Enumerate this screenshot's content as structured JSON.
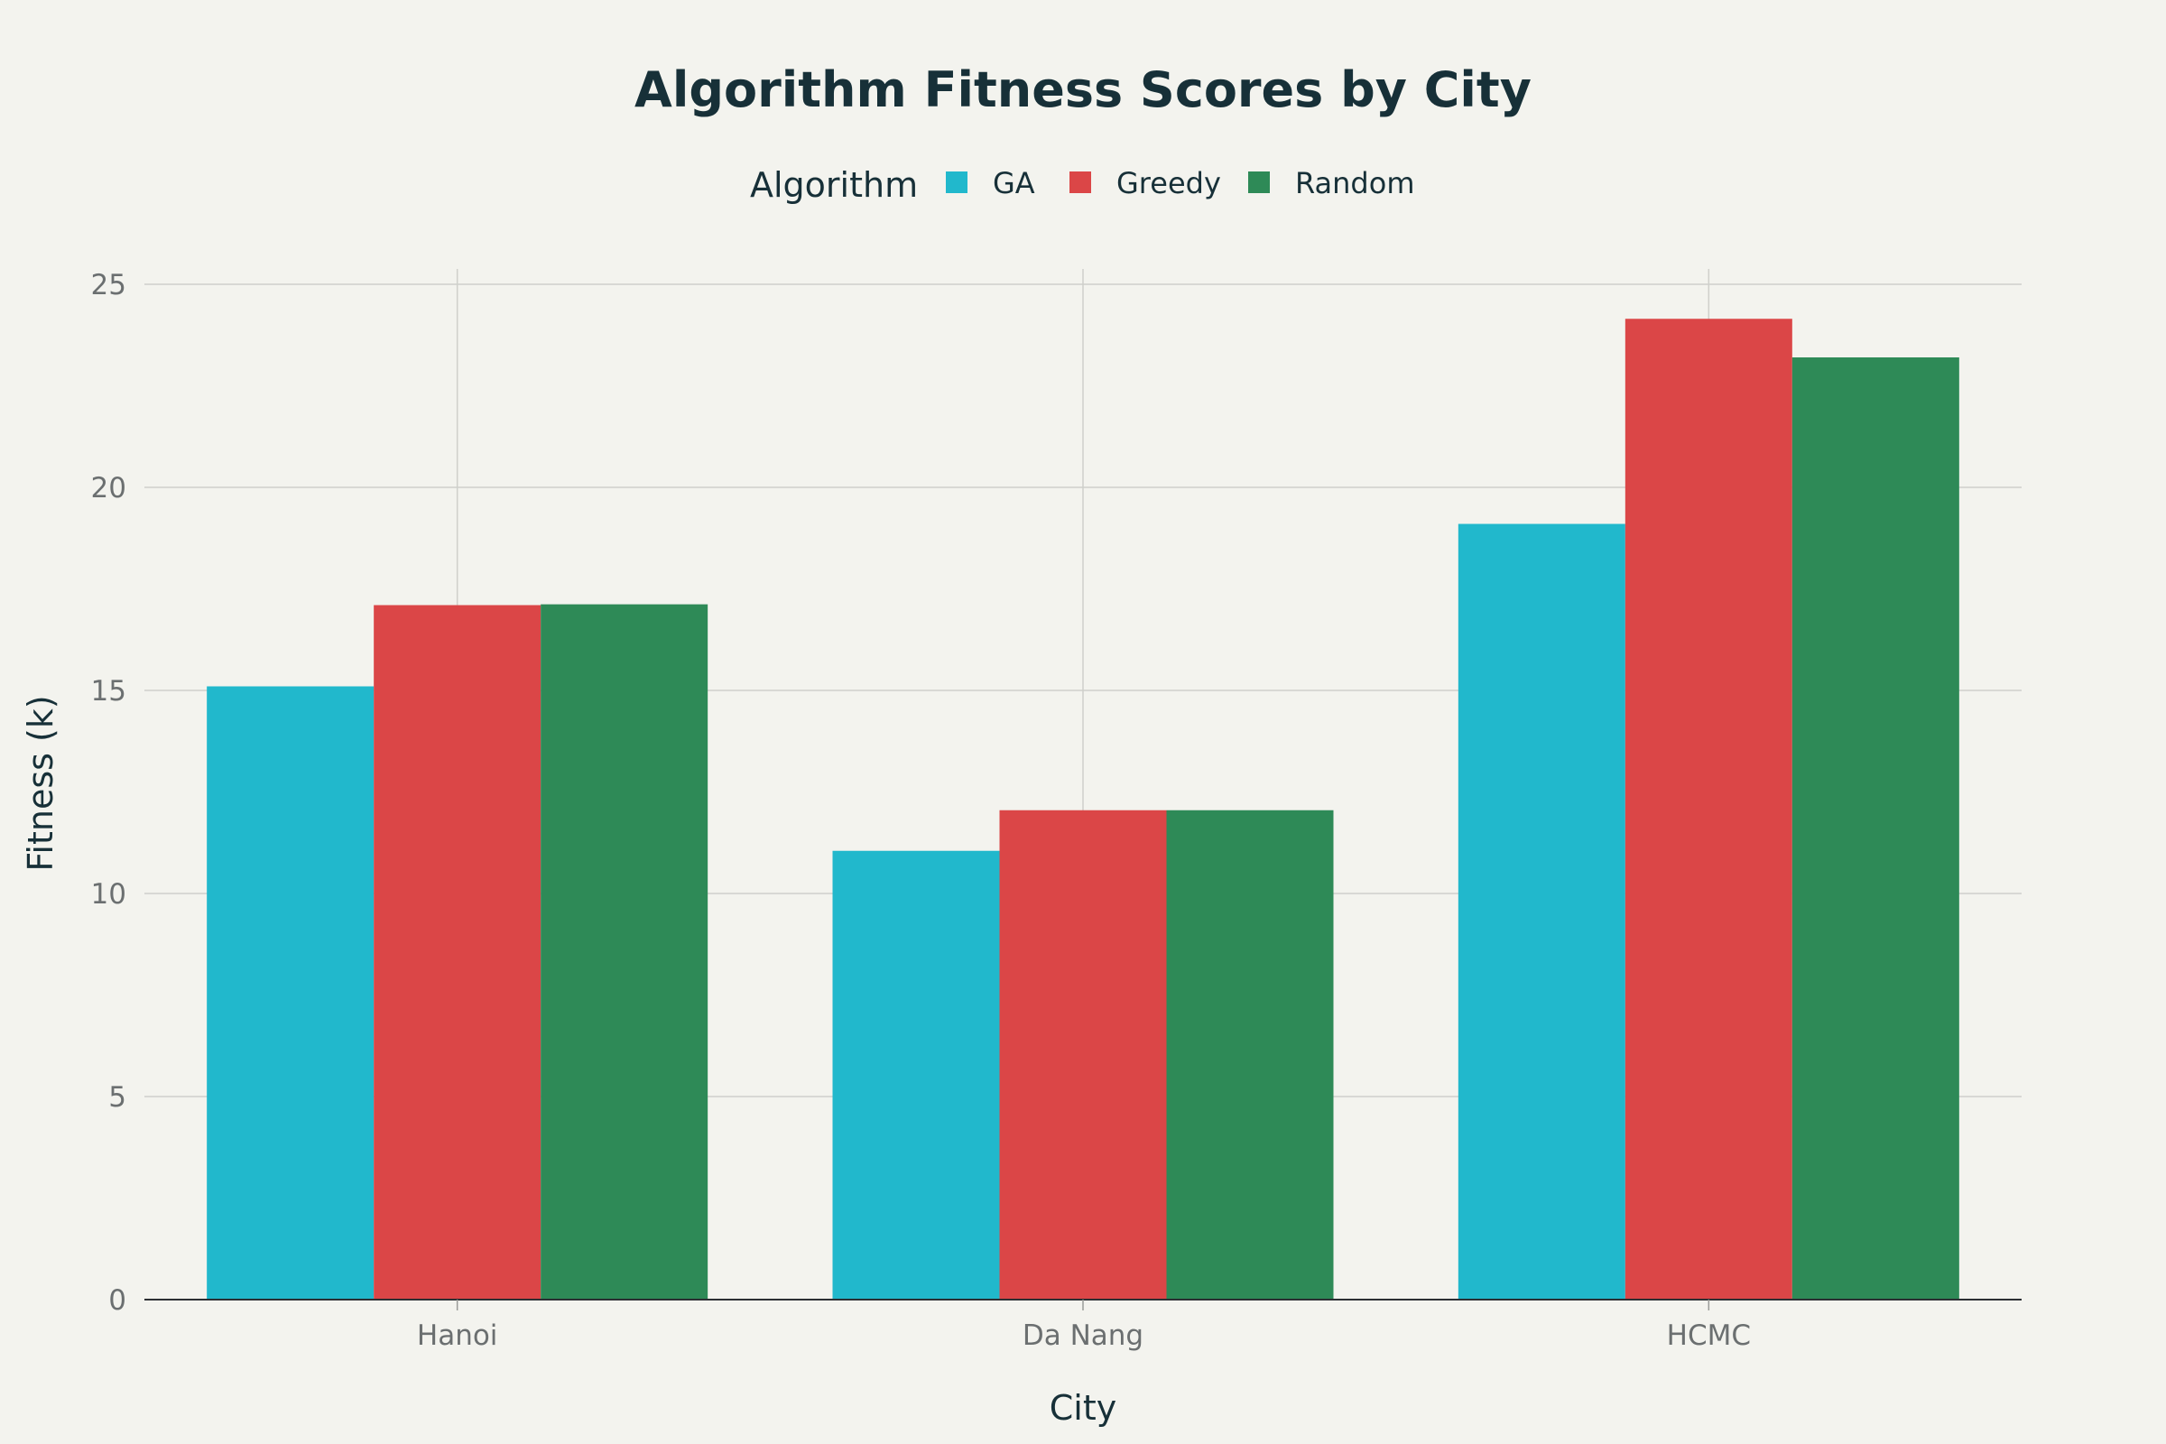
{
  "chart_data": {
    "type": "bar",
    "title": "Algorithm Fitness Scores by City",
    "xlabel": "City",
    "ylabel": "Fitness (k)",
    "categories": [
      "Hanoi",
      "Da Nang",
      "HCMC"
    ],
    "legend": {
      "title": "Algorithm",
      "placement": "top-center",
      "orientation": "horizontal"
    },
    "series": [
      {
        "name": "GA",
        "color": "#21b8cc",
        "values": [
          15.1,
          11.05,
          19.1
        ]
      },
      {
        "name": "Greedy",
        "color": "#db4647",
        "values": [
          17.1,
          12.05,
          24.15
        ]
      },
      {
        "name": "Random",
        "color": "#2e8a57",
        "values": [
          17.12,
          12.05,
          23.2
        ]
      }
    ],
    "ylim": [
      0,
      25
    ],
    "yticks": [
      0,
      5,
      10,
      15,
      20,
      25
    ],
    "grid": true
  }
}
